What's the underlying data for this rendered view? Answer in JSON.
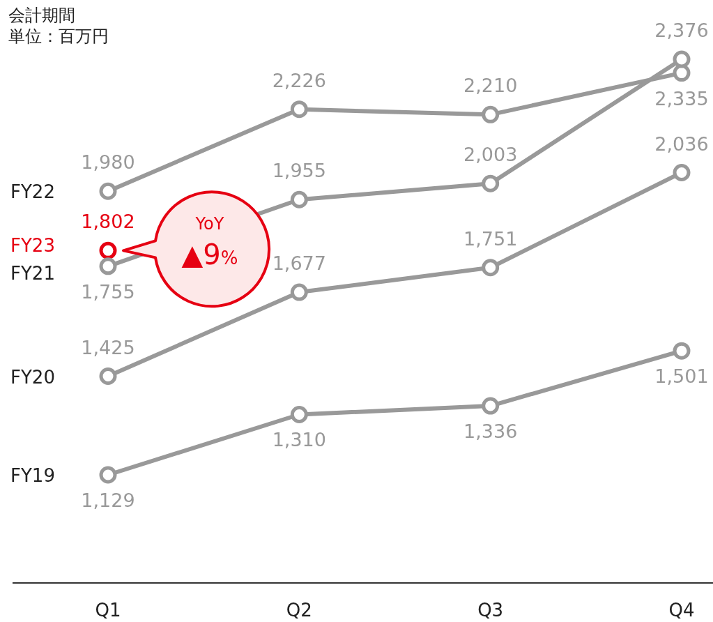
{
  "chart_data": {
    "type": "line",
    "categories": [
      "Q1",
      "Q2",
      "Q3",
      "Q4"
    ],
    "marker": "circle",
    "annotations": [
      "会計期間",
      "単位：百万円",
      {
        "text": "YoY ▲9%",
        "x": "Q1",
        "y": 1802
      }
    ],
    "series": [
      {
        "name": "FY22",
        "color": "#999999",
        "values": [
          1980,
          2226,
          2210,
          2335
        ],
        "value_labels": [
          "1,980",
          "2,226",
          "2,210",
          "2,335"
        ]
      },
      {
        "name": "FY23",
        "color": "#e60012",
        "values": [
          1802,
          null,
          null,
          null
        ],
        "value_labels": [
          "1,802",
          null,
          null,
          null
        ]
      },
      {
        "name": "FY21",
        "color": "#999999",
        "values": [
          1755,
          1955,
          2003,
          2376
        ],
        "value_labels": [
          "1,755",
          "1,955",
          "2,003",
          "2,376"
        ]
      },
      {
        "name": "FY20",
        "color": "#999999",
        "values": [
          1425,
          1677,
          1751,
          2036
        ],
        "value_labels": [
          "1,425",
          "1,677",
          "1,751",
          "2,036"
        ]
      },
      {
        "name": "FY19",
        "color": "#999999",
        "values": [
          1129,
          1310,
          1336,
          1501
        ],
        "value_labels": [
          "1,129",
          "1,310",
          "1,336",
          "1,501"
        ]
      }
    ]
  }
}
